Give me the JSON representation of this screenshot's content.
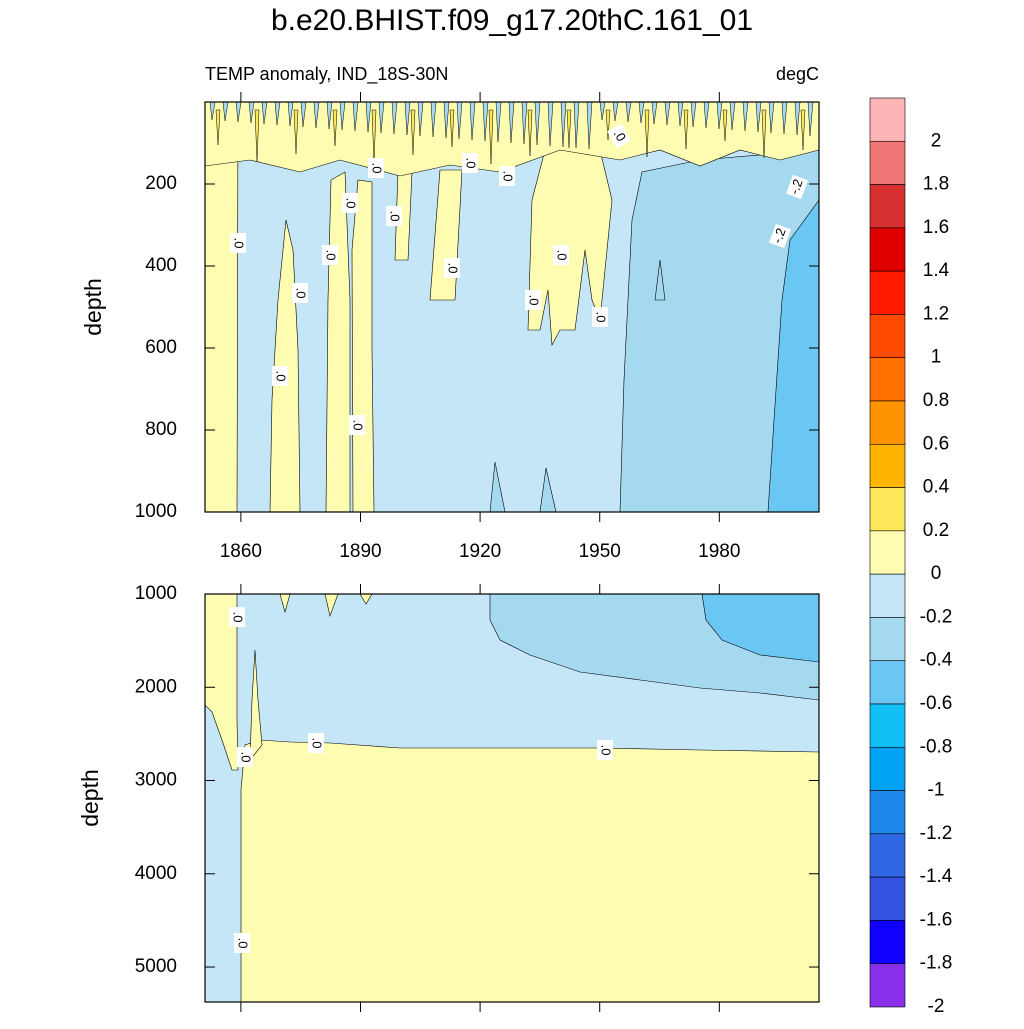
{
  "chart_data": {
    "type": "contour",
    "title": "b.e20.BHIST.f09_g17.20thC.161_01",
    "left_string": "TEMP anomaly, IND_18S-30N",
    "right_string": "degC",
    "xlim": [
      1851,
      2005
    ],
    "xticks": [
      1860,
      1890,
      1920,
      1950,
      1980
    ],
    "panels": [
      {
        "ylabel": "depth",
        "ylim": [
          0,
          1000
        ],
        "yticks": [
          200,
          400,
          600,
          800,
          1000
        ],
        "contour_labels": [
          ".0",
          ".0",
          ".0",
          ".0",
          ".0",
          ".0",
          ".0",
          ".0",
          ".0",
          ".0",
          ".0",
          ".0",
          ".0",
          ".0",
          ".0",
          "-.2",
          "-.2"
        ]
      },
      {
        "ylabel": "depth",
        "ylim": [
          1000,
          5375
        ],
        "yticks": [
          1000,
          2000,
          3000,
          4000,
          5000
        ],
        "contour_labels": [
          ".0",
          ".0",
          ".0",
          ".0",
          ".0"
        ]
      }
    ],
    "colorbar": {
      "levels": [
        2,
        1.8,
        1.6,
        1.4,
        1.2,
        1,
        0.8,
        0.6,
        0.4,
        0.2,
        0,
        -0.2,
        -0.4,
        -0.6,
        -0.8,
        -1,
        -1.2,
        -1.4,
        -1.6,
        -1.8,
        -2
      ],
      "colors": [
        "#fdb4b4",
        "#f07575",
        "#d83030",
        "#e00000",
        "#ff1a00",
        "#ff4a00",
        "#ff7000",
        "#ff9400",
        "#ffb400",
        "#fde85a",
        "#fefcb0",
        "#c5e6f6",
        "#a5d9f0",
        "#6ac6f2",
        "#12bff6",
        "#00a3f4",
        "#1e88ec",
        "#3068e4",
        "#3452e0",
        "#1000ff",
        "#8a30ea"
      ]
    }
  }
}
